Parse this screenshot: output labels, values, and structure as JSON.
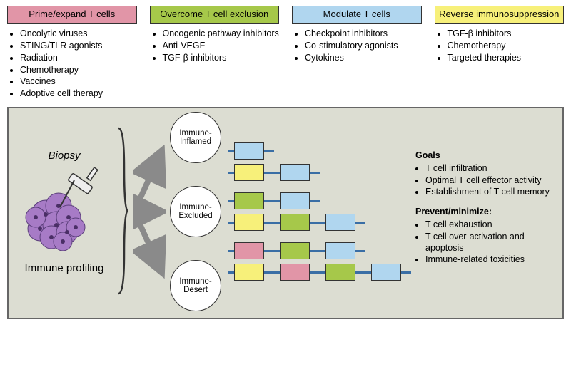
{
  "colors": {
    "pink": "#e195a7",
    "green": "#a6c84a",
    "blue": "#b0d6ef",
    "yellow": "#f7f07a",
    "panel_bg": "#dcddd2",
    "border": "#444444",
    "wire": "#3a6ea5"
  },
  "categories": [
    {
      "key": "prime",
      "color_key": "pink",
      "title": "Prime/expand T cells",
      "items": [
        "Oncolytic viruses",
        "STING/TLR agonists",
        "Radiation",
        "Chemotherapy",
        "Vaccines",
        "Adoptive cell therapy"
      ]
    },
    {
      "key": "exclusion",
      "color_key": "green",
      "title": "Overcome T cell exclusion",
      "items": [
        "Oncogenic pathway inhibitors",
        "Anti-VEGF",
        "TGF-β inhibitors"
      ]
    },
    {
      "key": "modulate",
      "color_key": "blue",
      "title": "Modulate T cells",
      "items": [
        "Checkpoint inhibitors",
        "Co-stimulatory agonists",
        "Cytokines"
      ]
    },
    {
      "key": "reverse",
      "color_key": "yellow",
      "title": "Reverse immunosuppression",
      "items": [
        "TGF-β inhibitors",
        "Chemotherapy",
        "Targeted therapies"
      ]
    }
  ],
  "biopsy": {
    "label": "Biopsy",
    "profiling": "Immune profiling"
  },
  "phenotypes": [
    {
      "name": "Immune-Inflamed",
      "label_line1": "Immune-",
      "label_line2": "Inflamed",
      "rows": [
        [
          "blue"
        ],
        [
          "yellow",
          "blue"
        ]
      ]
    },
    {
      "name": "Immune-Excluded",
      "label_line1": "Immune-",
      "label_line2": "Excluded",
      "rows": [
        [
          "green",
          "blue"
        ],
        [
          "yellow",
          "green",
          "blue"
        ]
      ]
    },
    {
      "name": "Immune-Desert",
      "label_line1": "Immune-",
      "label_line2": "Desert",
      "rows": [
        [
          "pink",
          "green",
          "blue"
        ],
        [
          "yellow",
          "pink",
          "green",
          "blue"
        ]
      ]
    }
  ],
  "goals": {
    "header": "Goals",
    "items": [
      "T cell infiltration",
      "Optimal T cell effector activity",
      "Establishment of T cell memory"
    ],
    "prevent_header": "Prevent/minimize:",
    "prevent_items": [
      "T cell exhaustion",
      "T cell over-activation and apoptosis",
      "Immune-related toxicities"
    ]
  }
}
